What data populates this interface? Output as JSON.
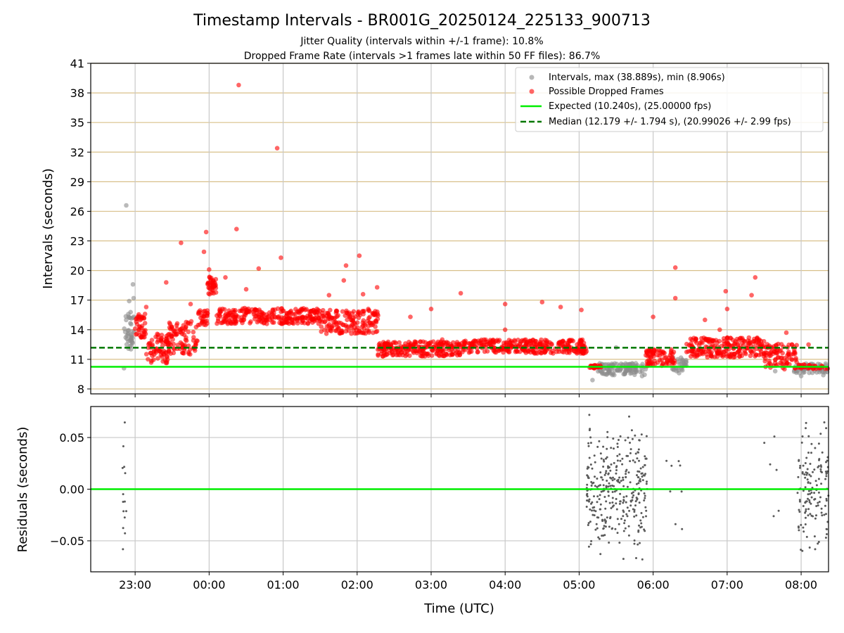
{
  "chart_data": {
    "type": "scatter",
    "title": "Timestamp Intervals - BR001G_20250124_225133_900713",
    "subtitle_lines": [
      "Jitter Quality (intervals within +/-1 frame): 10.8%",
      "Dropped Frame Rate (intervals >1 frames late within 50 FF files): 86.7%"
    ],
    "xlabel": "Time (UTC)",
    "x_ticks": [
      "23:00",
      "00:00",
      "01:00",
      "02:00",
      "03:00",
      "04:00",
      "05:00",
      "06:00",
      "07:00",
      "08:00"
    ],
    "x_range_hours": [
      22.4,
      32.37
    ],
    "top_panel": {
      "ylabel": "Intervals (seconds)",
      "ylim": [
        7.5,
        41
      ],
      "y_ticks": [
        8,
        11,
        14,
        17,
        20,
        23,
        26,
        29,
        32,
        35,
        38,
        41
      ],
      "expected_interval": 10.24,
      "median_interval": 12.179,
      "legend": [
        {
          "label": "Intervals, max (38.889s), min (8.906s)",
          "kind": "marker",
          "color": "#999999"
        },
        {
          "label": "Possible Dropped Frames",
          "kind": "marker",
          "color": "#ff0000"
        },
        {
          "label": "Expected (10.240s), (25.00000 fps)",
          "kind": "line",
          "color": "#00ee00"
        },
        {
          "label": "Median (12.179 +/- 1.794 s), (20.99026 +/- 2.99 fps)",
          "kind": "dashed",
          "color": "#007700"
        }
      ],
      "segments": [
        {
          "t0": 22.85,
          "t1": 22.99,
          "lo": 12.0,
          "hi": 15.8,
          "type": "normal",
          "n": 40
        },
        {
          "t0": 23.0,
          "t1": 23.15,
          "lo": 13.2,
          "hi": 15.6,
          "type": "dropped",
          "n": 40
        },
        {
          "t0": 23.15,
          "t1": 23.45,
          "lo": 10.6,
          "hi": 13.6,
          "type": "dropped",
          "n": 70
        },
        {
          "t0": 23.45,
          "t1": 23.85,
          "lo": 11.5,
          "hi": 15.0,
          "type": "dropped",
          "n": 90
        },
        {
          "t0": 23.85,
          "t1": 23.98,
          "lo": 14.4,
          "hi": 16.0,
          "type": "dropped",
          "n": 30
        },
        {
          "t0": 23.98,
          "t1": 24.1,
          "lo": 17.6,
          "hi": 19.4,
          "type": "dropped",
          "n": 40
        },
        {
          "t0": 24.1,
          "t1": 25.5,
          "lo": 14.6,
          "hi": 16.2,
          "type": "dropped",
          "n": 260
        },
        {
          "t0": 25.5,
          "t1": 26.3,
          "lo": 13.6,
          "hi": 16.0,
          "type": "dropped",
          "n": 160
        },
        {
          "t0": 26.28,
          "t1": 27.4,
          "lo": 11.3,
          "hi": 12.8,
          "type": "dropped",
          "n": 230
        },
        {
          "t0": 27.4,
          "t1": 29.1,
          "lo": 11.6,
          "hi": 13.0,
          "type": "dropped",
          "n": 320
        },
        {
          "t0": 29.1,
          "t1": 29.3,
          "lo": 10.1,
          "hi": 10.4,
          "type": "dropped",
          "n": 25
        },
        {
          "t0": 29.25,
          "t1": 29.9,
          "lo": 9.4,
          "hi": 10.6,
          "type": "normal",
          "n": 110
        },
        {
          "t0": 29.9,
          "t1": 30.3,
          "lo": 10.3,
          "hi": 12.0,
          "type": "dropped",
          "n": 80
        },
        {
          "t0": 30.25,
          "t1": 30.45,
          "lo": 9.8,
          "hi": 11.2,
          "type": "normal",
          "n": 30
        },
        {
          "t0": 30.45,
          "t1": 31.5,
          "lo": 11.2,
          "hi": 13.2,
          "type": "dropped",
          "n": 220
        },
        {
          "t0": 31.5,
          "t1": 31.95,
          "lo": 10.0,
          "hi": 12.6,
          "type": "dropped",
          "n": 90
        },
        {
          "t0": 31.9,
          "t1": 32.37,
          "lo": 9.6,
          "hi": 10.6,
          "type": "normal",
          "n": 60
        },
        {
          "t0": 31.95,
          "t1": 32.37,
          "lo": 10.0,
          "hi": 10.5,
          "type": "dropped",
          "n": 30
        }
      ],
      "outliers_dropped": [
        [
          23.15,
          16.3
        ],
        [
          23.42,
          18.8
        ],
        [
          23.62,
          22.8
        ],
        [
          23.75,
          16.6
        ],
        [
          23.93,
          21.9
        ],
        [
          23.96,
          23.9
        ],
        [
          24.0,
          20.1
        ],
        [
          24.22,
          19.3
        ],
        [
          24.37,
          24.2
        ],
        [
          24.4,
          38.8
        ],
        [
          24.5,
          18.1
        ],
        [
          24.67,
          20.2
        ],
        [
          24.92,
          32.4
        ],
        [
          24.97,
          21.3
        ],
        [
          25.3,
          16.0
        ],
        [
          25.62,
          17.5
        ],
        [
          25.85,
          20.5
        ],
        [
          25.82,
          19.0
        ],
        [
          26.03,
          21.5
        ],
        [
          26.08,
          17.6
        ],
        [
          26.27,
          18.3
        ],
        [
          26.15,
          16.1
        ],
        [
          26.72,
          15.3
        ],
        [
          27.0,
          16.1
        ],
        [
          27.4,
          17.7
        ],
        [
          28.0,
          16.6
        ],
        [
          28.5,
          16.8
        ],
        [
          28.75,
          16.3
        ],
        [
          29.03,
          16.0
        ],
        [
          28.0,
          14.0
        ],
        [
          30.0,
          15.3
        ],
        [
          30.3,
          20.3
        ],
        [
          30.3,
          17.2
        ],
        [
          30.7,
          15.0
        ],
        [
          30.9,
          14.0
        ],
        [
          30.98,
          17.9
        ],
        [
          31.0,
          16.1
        ],
        [
          31.33,
          17.5
        ],
        [
          31.38,
          19.3
        ],
        [
          31.8,
          13.7
        ],
        [
          32.1,
          12.5
        ],
        [
          27.15,
          13.0
        ]
      ],
      "outliers_normal": [
        [
          22.88,
          26.6
        ],
        [
          22.97,
          18.6
        ],
        [
          22.92,
          16.9
        ],
        [
          22.98,
          17.2
        ],
        [
          22.85,
          10.1
        ],
        [
          29.18,
          8.9
        ],
        [
          29.5,
          12.2
        ],
        [
          29.6,
          9.5
        ],
        [
          29.85,
          9.3
        ],
        [
          30.35,
          9.6
        ],
        [
          31.65,
          9.8
        ],
        [
          32.0,
          9.3
        ],
        [
          32.3,
          9.4
        ]
      ]
    },
    "bottom_panel": {
      "ylabel": "Residuals (seconds)",
      "ylim": [
        -0.08,
        0.08
      ],
      "y_ticks": [
        -0.05,
        0.0,
        0.05
      ],
      "y_tick_labels": [
        "−0.05",
        "0.00",
        "0.05"
      ],
      "reference": 0.0,
      "residual_groups": [
        {
          "t0": 22.83,
          "t1": 22.88,
          "n": 14
        },
        {
          "t0": 29.1,
          "t1": 29.92,
          "n": 330
        },
        {
          "t0": 30.15,
          "t1": 30.4,
          "n": 8
        },
        {
          "t0": 31.5,
          "t1": 31.7,
          "n": 6
        },
        {
          "t0": 31.95,
          "t1": 32.37,
          "n": 140
        }
      ]
    }
  }
}
